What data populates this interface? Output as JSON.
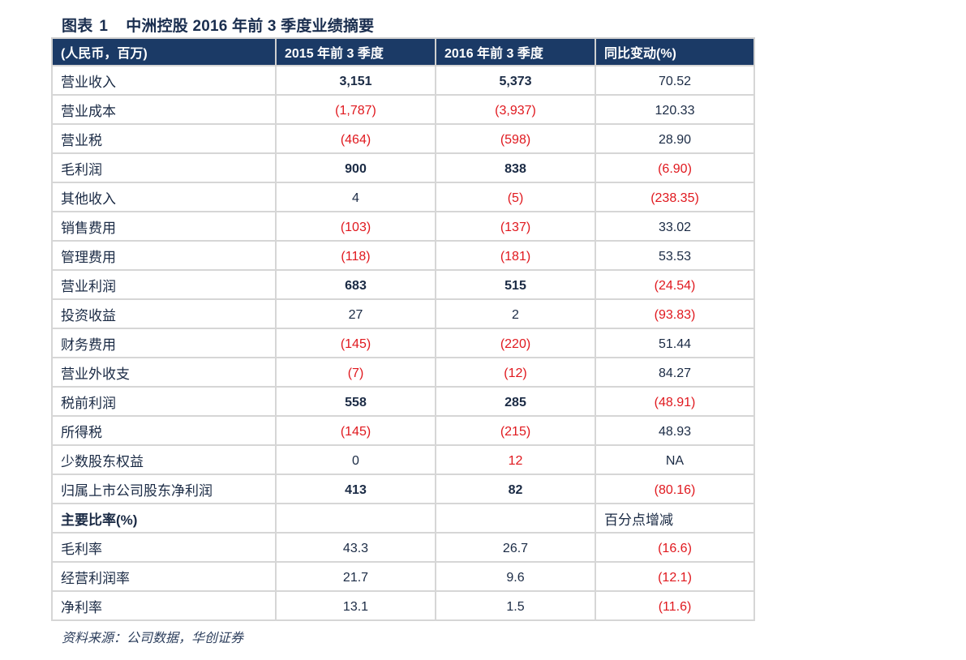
{
  "figure": {
    "label": "图表",
    "number": "1",
    "title": "中洲控股 2016 年前 3 季度业绩摘要"
  },
  "table": {
    "headers": [
      "(人民币，百万)",
      "2015 年前 3 季度",
      "2016 年前 3 季度",
      "同比变动(%)"
    ],
    "rows": [
      {
        "label": "营业收入",
        "v2015": "3,151",
        "v2016": "5,373",
        "yoy": "70.52",
        "bold": true
      },
      {
        "label": "营业成本",
        "v2015": "(1,787)",
        "v2016": "(3,937)",
        "yoy": "120.33",
        "bold": false
      },
      {
        "label": "营业税",
        "v2015": "(464)",
        "v2016": "(598)",
        "yoy": "28.90",
        "bold": false
      },
      {
        "label": "毛利润",
        "v2015": "900",
        "v2016": "838",
        "yoy": "(6.90)",
        "bold": true
      },
      {
        "label": "其他收入",
        "v2015": "4",
        "v2016": "(5)",
        "yoy": "(238.35)",
        "bold": false
      },
      {
        "label": "销售费用",
        "v2015": "(103)",
        "v2016": "(137)",
        "yoy": "33.02",
        "bold": false
      },
      {
        "label": "管理费用",
        "v2015": "(118)",
        "v2016": "(181)",
        "yoy": "53.53",
        "bold": false
      },
      {
        "label": "营业利润",
        "v2015": "683",
        "v2016": "515",
        "yoy": "(24.54)",
        "bold": true
      },
      {
        "label": "投资收益",
        "v2015": "27",
        "v2016": "2",
        "yoy": "(93.83)",
        "bold": false
      },
      {
        "label": "财务费用",
        "v2015": "(145)",
        "v2016": "(220)",
        "yoy": "51.44",
        "bold": false
      },
      {
        "label": "营业外收支",
        "v2015": "(7)",
        "v2016": "(12)",
        "yoy": "84.27",
        "bold": false
      },
      {
        "label": "税前利润",
        "v2015": "558",
        "v2016": "285",
        "yoy": "(48.91)",
        "bold": true
      },
      {
        "label": "所得税",
        "v2015": "(145)",
        "v2016": "(215)",
        "yoy": "48.93",
        "bold": false
      },
      {
        "label": "少数股东权益",
        "v2015": "0",
        "v2016": "12",
        "yoy": "NA",
        "bold": false,
        "red2016": true
      },
      {
        "label": "归属上市公司股东净利润",
        "v2015": "413",
        "v2016": "82",
        "yoy": "(80.16)",
        "bold": true
      }
    ],
    "ratio_section": {
      "label": "主要比率(%)",
      "note": "百分点增减"
    },
    "ratio_rows": [
      {
        "label": "毛利率",
        "v2015": "43.3",
        "v2016": "26.7",
        "yoy": "(16.6)"
      },
      {
        "label": "经营利润率",
        "v2015": "21.7",
        "v2016": "9.6",
        "yoy": "(12.1)"
      },
      {
        "label": "净利率",
        "v2015": "13.1",
        "v2016": "1.5",
        "yoy": "(11.6)"
      }
    ]
  },
  "source": "资料来源：公司数据，华创证券",
  "colors": {
    "header_bg": "#1b3a66",
    "negative": "#e0181e",
    "text": "#1a2a44",
    "grid": "#d6d6d6"
  }
}
